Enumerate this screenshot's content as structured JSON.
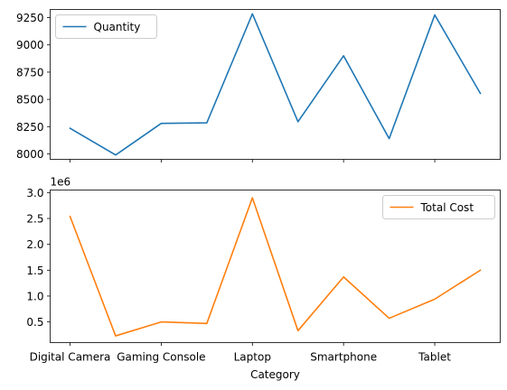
{
  "chart_data": [
    {
      "type": "line",
      "categories": [
        "Digital Camera",
        "",
        "Gaming Console",
        "",
        "Laptop",
        "",
        "Smartphone",
        "",
        "Tablet",
        ""
      ],
      "series": [
        {
          "name": "Quantity",
          "color": "#1f77b4",
          "values": [
            8235,
            7990,
            8280,
            8285,
            9285,
            8295,
            8900,
            8140,
            9275,
            8555
          ]
        }
      ],
      "ylim": [
        7950,
        9325
      ],
      "yticks": [
        8000,
        8250,
        8500,
        8750,
        9000,
        9250
      ],
      "legend": "upper-left",
      "grid": false,
      "xticklabels_visible": false
    },
    {
      "type": "line",
      "categories": [
        "Digital Camera",
        "",
        "Gaming Console",
        "",
        "Laptop",
        "",
        "Smartphone",
        "",
        "Tablet",
        ""
      ],
      "series": [
        {
          "name": "Total Cost",
          "color": "#ff7f0e",
          "values": [
            2540000,
            230000,
            500000,
            470000,
            2900000,
            330000,
            1370000,
            570000,
            940000,
            1500000
          ]
        }
      ],
      "ylim": [
        100000,
        3050000
      ],
      "yticks": [
        500000,
        1000000,
        1500000,
        2000000,
        2500000,
        3000000
      ],
      "ytick_labels": [
        "0.5",
        "1.0",
        "1.5",
        "2.0",
        "2.5",
        "3.0"
      ],
      "offset_text": "1e6",
      "legend": "upper-right",
      "grid": false,
      "xlabel": "Category",
      "xticklabels_visible": true
    }
  ]
}
